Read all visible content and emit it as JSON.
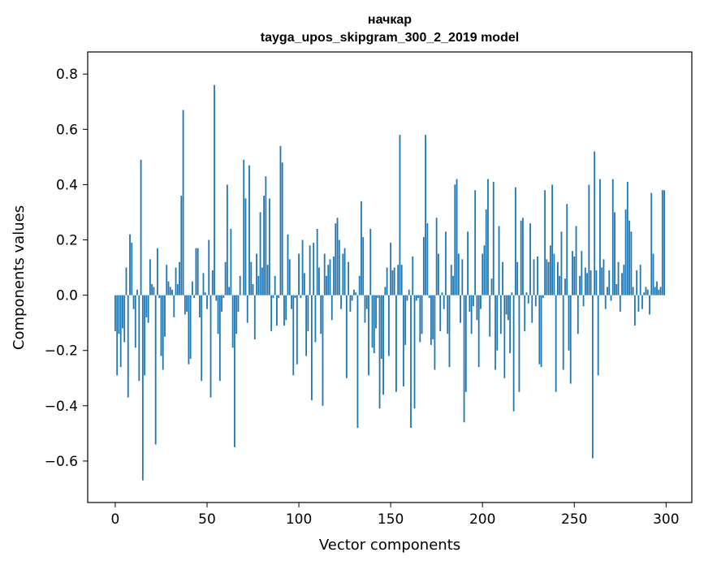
{
  "chart_data": {
    "type": "bar",
    "title": "начкар",
    "subtitle": "tayga_upos_skipgram_300_2_2019 model",
    "xlabel": "Vector components",
    "ylabel": "Components values",
    "xlim": [
      -15,
      314
    ],
    "ylim": [
      -0.75,
      0.88
    ],
    "xticks": [
      0,
      50,
      100,
      150,
      200,
      250,
      300
    ],
    "xtick_labels": [
      "0",
      "50",
      "100",
      "150",
      "200",
      "250",
      "300"
    ],
    "yticks": [
      -0.6,
      -0.4,
      -0.2,
      0.0,
      0.2,
      0.4,
      0.6,
      0.8
    ],
    "ytick_labels": [
      "−0.6",
      "−0.4",
      "−0.2",
      "0.0",
      "0.2",
      "0.4",
      "0.6",
      "0.8"
    ],
    "grid": false,
    "bar_color": "#1f77b4",
    "x": "0..299",
    "values": [
      -0.13,
      -0.29,
      -0.14,
      -0.26,
      -0.12,
      -0.17,
      0.1,
      -0.37,
      0.22,
      0.19,
      -0.05,
      -0.19,
      0.02,
      -0.31,
      0.49,
      -0.67,
      -0.29,
      -0.08,
      -0.1,
      0.13,
      0.04,
      0.03,
      -0.54,
      0.17,
      -0.01,
      -0.22,
      -0.27,
      -0.15,
      0.11,
      0.05,
      0.03,
      0.02,
      -0.08,
      0.1,
      0.04,
      0.12,
      0.36,
      0.67,
      -0.07,
      -0.06,
      -0.25,
      -0.23,
      0.05,
      -0.01,
      0.17,
      0.17,
      -0.08,
      -0.31,
      0.08,
      0.01,
      -0.05,
      0.2,
      -0.37,
      0.09,
      0.76,
      -0.02,
      -0.14,
      -0.31,
      -0.06,
      -0.01,
      0.12,
      0.4,
      0.03,
      0.24,
      -0.19,
      -0.55,
      -0.14,
      -0.06,
      0.07,
      0.0,
      0.49,
      0.35,
      -0.1,
      0.47,
      0.12,
      0.04,
      -0.16,
      0.15,
      0.07,
      0.3,
      0.1,
      0.36,
      0.43,
      0.11,
      0.35,
      -0.13,
      -0.01,
      0.07,
      -0.11,
      -0.01,
      0.54,
      0.48,
      -0.11,
      -0.09,
      0.22,
      0.13,
      -0.05,
      -0.29,
      -0.01,
      -0.25,
      0.15,
      -0.01,
      0.2,
      0.08,
      -0.22,
      -0.13,
      0.18,
      -0.38,
      0.19,
      -0.17,
      0.24,
      0.1,
      -0.14,
      -0.4,
      0.15,
      0.07,
      0.11,
      0.13,
      -0.09,
      0.14,
      0.26,
      0.28,
      0.2,
      -0.05,
      0.15,
      0.17,
      -0.3,
      0.12,
      -0.06,
      -0.02,
      0.02,
      0.01,
      -0.48,
      0.07,
      0.34,
      0.21,
      -0.1,
      -0.05,
      -0.29,
      0.24,
      -0.19,
      -0.21,
      -0.12,
      -0.01,
      -0.41,
      -0.23,
      -0.36,
      0.03,
      0.1,
      -0.22,
      0.19,
      0.09,
      0.1,
      -0.35,
      0.11,
      0.58,
      0.11,
      -0.33,
      -0.18,
      -0.02,
      0.02,
      -0.48,
      0.14,
      -0.41,
      -0.02,
      -0.01,
      -0.17,
      -0.14,
      0.21,
      0.58,
      0.26,
      -0.01,
      -0.18,
      -0.16,
      -0.27,
      0.28,
      0.15,
      -0.13,
      0.01,
      -0.05,
      0.23,
      -0.14,
      -0.26,
      0.11,
      0.07,
      0.4,
      0.42,
      0.15,
      -0.1,
      0.13,
      -0.46,
      -0.35,
      0.23,
      -0.06,
      -0.14,
      -0.04,
      0.38,
      -0.09,
      -0.26,
      -0.05,
      0.15,
      0.18,
      0.31,
      0.42,
      -0.15,
      0.06,
      0.41,
      -0.27,
      -0.2,
      0.25,
      -0.14,
      0.12,
      -0.3,
      -0.07,
      -0.09,
      -0.21,
      0.01,
      -0.42,
      0.39,
      0.12,
      -0.35,
      0.27,
      0.28,
      -0.13,
      0.01,
      -0.03,
      0.26,
      -0.1,
      0.13,
      -0.04,
      0.14,
      -0.25,
      -0.26,
      -0.01,
      0.38,
      0.13,
      0.12,
      0.18,
      0.4,
      0.15,
      -0.35,
      0.12,
      0.07,
      0.23,
      -0.27,
      0.06,
      0.33,
      -0.2,
      -0.32,
      0.16,
      0.14,
      0.25,
      -0.14,
      0.07,
      0.16,
      -0.04,
      0.1,
      0.08,
      0.4,
      0.09,
      -0.59,
      0.52,
      0.09,
      -0.29,
      0.42,
      0.1,
      0.13,
      -0.05,
      0.03,
      0.09,
      -0.02,
      0.42,
      0.3,
      0.04,
      0.12,
      -0.06,
      0.08,
      0.11,
      0.31,
      0.41,
      0.27,
      0.23,
      0.03,
      -0.11,
      0.09,
      -0.06,
      0.11,
      -0.05,
      0.01,
      0.03,
      0.02,
      -0.07,
      0.37,
      0.15,
      0.03,
      0.05,
      0.02,
      0.03,
      0.38,
      0.38
    ]
  }
}
